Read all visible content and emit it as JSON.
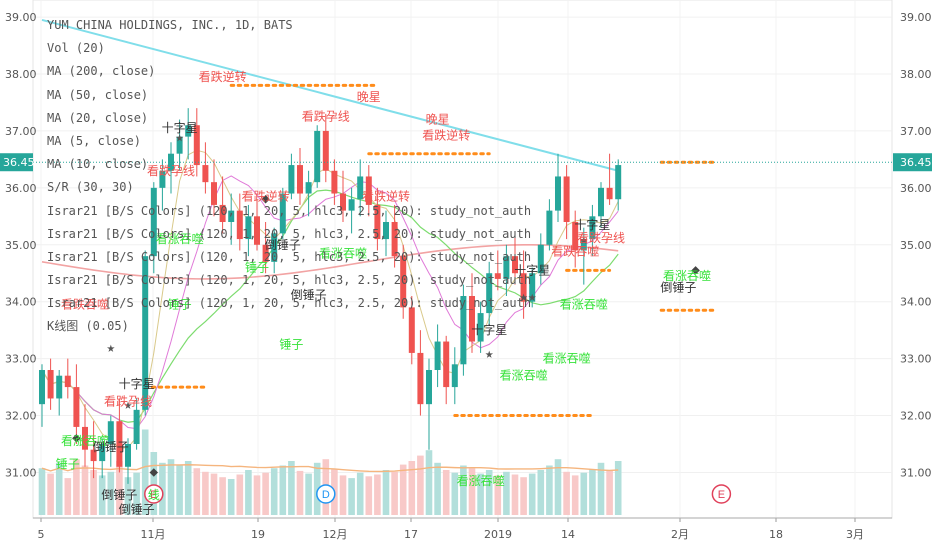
{
  "legend": {
    "title": "YUM CHINA HOLDINGS, INC., 1D, BATS",
    "lines": [
      "Vol (20)",
      "MA (200, close)",
      "MA (50, close)",
      "MA (20, close)",
      "MA (5, close)",
      "MA (10, close)",
      "S/R (30, 30)",
      "Israr21 [B/S Colors] (120, 1, 20, 5, hlc3, 2.5, 20): study_not_auth",
      "Israr21 [B/S Colors] (120, 1, 20, 5, hlc3, 2.5, 20): study_not_auth",
      "Israr21 [B/S Colors] (120, 1, 20, 5, hlc3, 2.5, 20): study_not_auth",
      "Israr21 [B/S Colors] (120, 1, 20, 5, hlc3, 2.5, 20): study_not_auth",
      "Israr21 [B/S Colors] (120, 1, 20, 5, hlc3, 2.5, 20): study_not_auth",
      "K线图 (0.05)"
    ]
  },
  "colors": {
    "up": "#26a69a",
    "down": "#ef5350",
    "vol_up": "#b2dfdb",
    "vol_down": "#f8c9c8",
    "ma200": "#80deea",
    "ma50": "#f2a3a3",
    "ma20": "#7ddc6f",
    "ma10": "#e07ad8",
    "ma5": "#d9c98a",
    "vol_ma": "#f5b57e",
    "sr": "#ff8c1a",
    "bull_text": "#37e23a",
    "bear_text": "#ef5350",
    "neutral_text": "#333333",
    "price_label_bg": "#26a69a"
  },
  "chart_data": {
    "type": "candlestick",
    "title": "YUM CHINA HOLDINGS, INC., 1D, BATS",
    "ylim": [
      30.2,
      39.3
    ],
    "y_ticks": [
      "31.00",
      "32.00",
      "33.00",
      "34.00",
      "35.00",
      "36.00",
      "37.00",
      "38.00",
      "39.00"
    ],
    "x_labels": [
      "5",
      "11月",
      "19",
      "12月",
      "17",
      "2019",
      "14",
      "2月",
      "18",
      "3月"
    ],
    "last_price": "36.45",
    "candles": [
      {
        "o": 32.2,
        "h": 32.9,
        "l": 31.8,
        "c": 32.8
      },
      {
        "o": 32.8,
        "h": 33.0,
        "l": 32.1,
        "c": 32.3
      },
      {
        "o": 32.3,
        "h": 32.8,
        "l": 32.0,
        "c": 32.7
      },
      {
        "o": 32.7,
        "h": 33.0,
        "l": 32.3,
        "c": 32.5
      },
      {
        "o": 32.5,
        "h": 32.9,
        "l": 31.5,
        "c": 31.8
      },
      {
        "o": 31.8,
        "h": 32.2,
        "l": 31.1,
        "c": 31.4
      },
      {
        "o": 31.4,
        "h": 31.9,
        "l": 30.9,
        "c": 31.2
      },
      {
        "o": 31.2,
        "h": 31.6,
        "l": 30.9,
        "c": 31.5
      },
      {
        "o": 31.5,
        "h": 32.0,
        "l": 31.1,
        "c": 31.9
      },
      {
        "o": 31.9,
        "h": 32.3,
        "l": 31.0,
        "c": 31.1
      },
      {
        "o": 31.1,
        "h": 31.6,
        "l": 30.8,
        "c": 31.5
      },
      {
        "o": 31.5,
        "h": 32.3,
        "l": 31.4,
        "c": 32.1
      },
      {
        "o": 32.1,
        "h": 34.9,
        "l": 32.0,
        "c": 34.8
      },
      {
        "o": 34.8,
        "h": 36.1,
        "l": 34.5,
        "c": 36.0
      },
      {
        "o": 36.0,
        "h": 36.5,
        "l": 35.6,
        "c": 36.3
      },
      {
        "o": 36.3,
        "h": 36.8,
        "l": 35.9,
        "c": 36.6
      },
      {
        "o": 36.6,
        "h": 37.2,
        "l": 36.3,
        "c": 36.9
      },
      {
        "o": 36.9,
        "h": 37.4,
        "l": 36.5,
        "c": 37.1
      },
      {
        "o": 37.1,
        "h": 37.4,
        "l": 36.2,
        "c": 36.4
      },
      {
        "o": 36.4,
        "h": 36.8,
        "l": 35.9,
        "c": 36.1
      },
      {
        "o": 36.1,
        "h": 36.5,
        "l": 35.5,
        "c": 35.7
      },
      {
        "o": 35.7,
        "h": 36.2,
        "l": 35.2,
        "c": 35.4
      },
      {
        "o": 35.4,
        "h": 35.9,
        "l": 35.0,
        "c": 35.6
      },
      {
        "o": 35.6,
        "h": 35.9,
        "l": 34.9,
        "c": 35.1
      },
      {
        "o": 35.1,
        "h": 35.7,
        "l": 34.8,
        "c": 35.5
      },
      {
        "o": 35.5,
        "h": 35.8,
        "l": 34.9,
        "c": 35.0
      },
      {
        "o": 35.0,
        "h": 35.4,
        "l": 34.5,
        "c": 34.7
      },
      {
        "o": 34.7,
        "h": 35.3,
        "l": 34.5,
        "c": 35.2
      },
      {
        "o": 35.2,
        "h": 36.0,
        "l": 35.1,
        "c": 35.9
      },
      {
        "o": 35.9,
        "h": 36.6,
        "l": 35.8,
        "c": 36.4
      },
      {
        "o": 36.4,
        "h": 36.7,
        "l": 35.7,
        "c": 35.9
      },
      {
        "o": 35.9,
        "h": 36.3,
        "l": 35.5,
        "c": 36.1
      },
      {
        "o": 36.1,
        "h": 37.1,
        "l": 36.0,
        "c": 37.0
      },
      {
        "o": 37.0,
        "h": 37.3,
        "l": 36.1,
        "c": 36.3
      },
      {
        "o": 36.3,
        "h": 36.5,
        "l": 35.7,
        "c": 35.9
      },
      {
        "o": 35.9,
        "h": 36.3,
        "l": 35.4,
        "c": 35.6
      },
      {
        "o": 35.6,
        "h": 36.0,
        "l": 35.2,
        "c": 35.8
      },
      {
        "o": 35.8,
        "h": 36.5,
        "l": 35.5,
        "c": 36.2
      },
      {
        "o": 36.2,
        "h": 36.4,
        "l": 35.5,
        "c": 35.7
      },
      {
        "o": 35.7,
        "h": 36.0,
        "l": 34.9,
        "c": 35.1
      },
      {
        "o": 35.1,
        "h": 35.6,
        "l": 34.8,
        "c": 35.4
      },
      {
        "o": 35.4,
        "h": 35.7,
        "l": 34.6,
        "c": 34.8
      },
      {
        "o": 34.8,
        "h": 35.0,
        "l": 33.7,
        "c": 33.9
      },
      {
        "o": 33.9,
        "h": 34.1,
        "l": 32.9,
        "c": 33.1
      },
      {
        "o": 33.1,
        "h": 33.5,
        "l": 32.0,
        "c": 32.2
      },
      {
        "o": 32.2,
        "h": 33.0,
        "l": 31.4,
        "c": 32.8
      },
      {
        "o": 32.8,
        "h": 33.6,
        "l": 32.5,
        "c": 33.3
      },
      {
        "o": 33.3,
        "h": 33.4,
        "l": 32.2,
        "c": 32.5
      },
      {
        "o": 32.5,
        "h": 33.2,
        "l": 32.2,
        "c": 32.9
      },
      {
        "o": 32.9,
        "h": 34.3,
        "l": 32.7,
        "c": 34.1
      },
      {
        "o": 34.1,
        "h": 34.5,
        "l": 33.1,
        "c": 33.3
      },
      {
        "o": 33.3,
        "h": 34.0,
        "l": 33.1,
        "c": 33.8
      },
      {
        "o": 33.8,
        "h": 34.7,
        "l": 33.6,
        "c": 34.5
      },
      {
        "o": 34.5,
        "h": 34.9,
        "l": 34.2,
        "c": 34.4
      },
      {
        "o": 34.4,
        "h": 35.0,
        "l": 34.1,
        "c": 34.8
      },
      {
        "o": 34.8,
        "h": 35.2,
        "l": 34.3,
        "c": 34.5
      },
      {
        "o": 34.5,
        "h": 34.9,
        "l": 33.7,
        "c": 34.0
      },
      {
        "o": 34.0,
        "h": 34.6,
        "l": 33.9,
        "c": 34.5
      },
      {
        "o": 34.5,
        "h": 35.2,
        "l": 34.3,
        "c": 35.0
      },
      {
        "o": 35.0,
        "h": 35.8,
        "l": 34.9,
        "c": 35.6
      },
      {
        "o": 35.6,
        "h": 36.6,
        "l": 35.4,
        "c": 36.2
      },
      {
        "o": 36.2,
        "h": 36.4,
        "l": 35.1,
        "c": 35.4
      },
      {
        "o": 35.4,
        "h": 35.6,
        "l": 34.6,
        "c": 34.9
      },
      {
        "o": 34.9,
        "h": 35.3,
        "l": 34.3,
        "c": 35.1
      },
      {
        "o": 35.1,
        "h": 35.7,
        "l": 34.8,
        "c": 35.5
      },
      {
        "o": 35.5,
        "h": 36.1,
        "l": 35.3,
        "c": 36.0
      },
      {
        "o": 36.0,
        "h": 36.6,
        "l": 35.7,
        "c": 35.8
      },
      {
        "o": 35.8,
        "h": 36.5,
        "l": 35.6,
        "c": 36.4
      }
    ],
    "volumes": [
      0.52,
      0.46,
      0.58,
      0.41,
      0.62,
      0.55,
      0.5,
      0.44,
      0.48,
      0.6,
      0.42,
      0.47,
      0.95,
      0.7,
      0.58,
      0.62,
      0.55,
      0.6,
      0.52,
      0.48,
      0.46,
      0.42,
      0.4,
      0.45,
      0.5,
      0.44,
      0.47,
      0.52,
      0.55,
      0.6,
      0.49,
      0.46,
      0.58,
      0.62,
      0.51,
      0.44,
      0.41,
      0.47,
      0.43,
      0.45,
      0.5,
      0.48,
      0.56,
      0.6,
      0.66,
      0.72,
      0.58,
      0.5,
      0.47,
      0.55,
      0.52,
      0.46,
      0.5,
      0.44,
      0.48,
      0.45,
      0.42,
      0.46,
      0.5,
      0.55,
      0.62,
      0.48,
      0.44,
      0.47,
      0.51,
      0.58,
      0.5,
      0.6
    ],
    "support_resistance": [
      {
        "y": 32.5,
        "i0": 12,
        "i1": 19
      },
      {
        "y": 37.8,
        "i0": 22,
        "i1": 39
      },
      {
        "y": 36.6,
        "i0": 38,
        "i1": 52
      },
      {
        "y": 32.0,
        "i0": 48,
        "i1": 64
      },
      {
        "y": 34.55,
        "i0": 61,
        "i1": 66
      },
      {
        "y": 36.45,
        "i0": 72,
        "i1": 78
      },
      {
        "y": 33.85,
        "i0": 72,
        "i1": 78
      }
    ],
    "patterns": [
      {
        "text": "看跌逆转",
        "kind": "bear",
        "i": 21,
        "y": 37.95
      },
      {
        "text": "十字星",
        "kind": "neutral",
        "i": 16,
        "y": 37.05
      },
      {
        "text": "看跌孕线",
        "kind": "bear",
        "i": 15,
        "y": 36.3
      },
      {
        "text": "看跌逆转",
        "kind": "bear",
        "i": 26,
        "y": 35.85
      },
      {
        "text": "晚星",
        "kind": "bear",
        "i": 38,
        "y": 37.6
      },
      {
        "text": "看跌孕线",
        "kind": "bear",
        "i": 33,
        "y": 37.25
      },
      {
        "text": "看跌逆转",
        "kind": "bear",
        "i": 40,
        "y": 35.85
      },
      {
        "text": "晚星",
        "kind": "bear",
        "i": 46,
        "y": 37.2
      },
      {
        "text": "看跌逆转",
        "kind": "bear",
        "i": 47,
        "y": 36.92
      },
      {
        "text": "看涨吞噬",
        "kind": "bull",
        "i": 16,
        "y": 35.1
      },
      {
        "text": "倒锤子",
        "kind": "neutral",
        "i": 28,
        "y": 35.0
      },
      {
        "text": "看涨吞噬",
        "kind": "bull",
        "i": 35,
        "y": 34.85
      },
      {
        "text": "锤子",
        "kind": "bull",
        "i": 25,
        "y": 34.6
      },
      {
        "text": "倒锤子",
        "kind": "neutral",
        "i": 31,
        "y": 34.12
      },
      {
        "text": "锤子",
        "kind": "bull",
        "i": 16,
        "y": 33.95
      },
      {
        "text": "锤子",
        "kind": "bull",
        "i": 29,
        "y": 33.25
      },
      {
        "text": "看跌吞噬",
        "kind": "bear",
        "i": 5,
        "y": 33.95
      },
      {
        "text": "十字星",
        "kind": "neutral",
        "i": 11,
        "y": 32.55
      },
      {
        "text": "看跌孕线",
        "kind": "bear",
        "i": 10,
        "y": 32.25
      },
      {
        "text": "看涨吞噬",
        "kind": "bull",
        "i": 5,
        "y": 31.55
      },
      {
        "text": "倒锤子",
        "kind": "neutral",
        "i": 8,
        "y": 31.45
      },
      {
        "text": "锤子",
        "kind": "bull",
        "i": 3,
        "y": 31.15
      },
      {
        "text": "倒锤子",
        "kind": "neutral",
        "i": 11,
        "y": 30.35
      },
      {
        "text": "十字星",
        "kind": "neutral",
        "i": 52,
        "y": 33.5
      },
      {
        "text": "十字星",
        "kind": "neutral",
        "i": 57,
        "y": 34.55
      },
      {
        "text": "看涨吞噬",
        "kind": "bull",
        "i": 56,
        "y": 32.7
      },
      {
        "text": "看涨吞噬",
        "kind": "bull",
        "i": 61,
        "y": 33.0
      },
      {
        "text": "看涨吞噬",
        "kind": "bull",
        "i": 63,
        "y": 33.95
      },
      {
        "text": "看涨吞噬",
        "kind": "bull",
        "i": 51,
        "y": 30.85
      },
      {
        "text": "十字星",
        "kind": "neutral",
        "i": 64,
        "y": 35.35
      },
      {
        "text": "看跌孕线",
        "kind": "bear",
        "i": 65,
        "y": 35.12
      },
      {
        "text": "看跌吞噬",
        "kind": "bear",
        "i": 62,
        "y": 34.88
      },
      {
        "text": "看涨吞噬",
        "kind": "bull",
        "i": 75,
        "y": 34.45
      },
      {
        "text": "倒锤子",
        "kind": "neutral",
        "i": 74,
        "y": 34.25
      }
    ],
    "markers": [
      {
        "kind": "star",
        "i": 16,
        "y": 36.9
      },
      {
        "kind": "star",
        "i": 8,
        "y": 33.2
      },
      {
        "kind": "star",
        "i": 10,
        "y": 32.2
      },
      {
        "kind": "diamond",
        "i": 4,
        "y": 31.6
      },
      {
        "kind": "diamond",
        "i": 13,
        "y": 31.0
      },
      {
        "kind": "diamond",
        "i": 26,
        "y": 35.8
      },
      {
        "kind": "star",
        "i": 52,
        "y": 33.1
      },
      {
        "kind": "star",
        "i": 56,
        "y": 34.1
      },
      {
        "kind": "star",
        "i": 57,
        "y": 34.1
      },
      {
        "kind": "star",
        "i": 63,
        "y": 35.1
      },
      {
        "kind": "diamond",
        "i": 76,
        "y": 34.55
      }
    ],
    "events": [
      {
        "text": "E",
        "kind": "earn",
        "i": 13
      },
      {
        "text": "D",
        "kind": "div",
        "i": 33
      },
      {
        "text": "E",
        "kind": "earn",
        "i": 79
      }
    ],
    "bottom_labels": [
      {
        "text": "倒锤子",
        "kind": "neutral",
        "i": 9
      },
      {
        "text": "线",
        "kind": "bull",
        "i": 13
      }
    ]
  }
}
